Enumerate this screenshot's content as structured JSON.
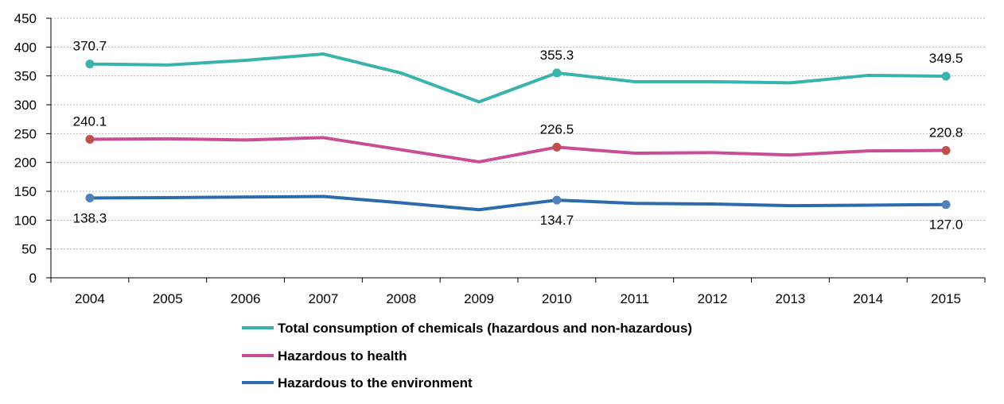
{
  "chart_data": {
    "type": "line",
    "title": "",
    "xlabel": "",
    "ylabel": "",
    "x": [
      "2004",
      "2005",
      "2006",
      "2007",
      "2008",
      "2009",
      "2010",
      "2011",
      "2012",
      "2013",
      "2014",
      "2015"
    ],
    "ylim": [
      0,
      450
    ],
    "yticks": [
      "0",
      "50",
      "100",
      "150",
      "200",
      "250",
      "300",
      "350",
      "400",
      "450"
    ],
    "grid": true,
    "legend_position": "bottom",
    "series": [
      {
        "name": "Total consumption of chemicals (hazardous and non-hazardous)",
        "color": "#39b3ac",
        "marker_color": "#39b3ac",
        "values": [
          370.7,
          369,
          377,
          388,
          355,
          305,
          355.3,
          340,
          340,
          338,
          351,
          349.5
        ],
        "labels": [
          {
            "index": 0,
            "text": "370.7",
            "position": "above"
          },
          {
            "index": 6,
            "text": "355.3",
            "position": "above"
          },
          {
            "index": 11,
            "text": "349.5",
            "position": "above"
          }
        ]
      },
      {
        "name": "Hazardous to health",
        "color": "#c94d96",
        "marker_color": "#c0504d",
        "values": [
          240.1,
          241,
          239,
          243,
          222,
          201,
          226.5,
          216,
          217,
          213,
          220,
          220.8
        ],
        "labels": [
          {
            "index": 0,
            "text": "240.1",
            "position": "above"
          },
          {
            "index": 6,
            "text": "226.5",
            "position": "above"
          },
          {
            "index": 11,
            "text": "220.8",
            "position": "above"
          }
        ]
      },
      {
        "name": "Hazardous to the environment",
        "color": "#2c6bb0",
        "marker_color": "#4f81bd",
        "values": [
          138.3,
          139,
          140,
          141,
          130,
          118,
          134.7,
          129,
          128,
          125,
          126,
          127.0
        ],
        "labels": [
          {
            "index": 0,
            "text": "138.3",
            "position": "below"
          },
          {
            "index": 6,
            "text": "134.7",
            "position": "below"
          },
          {
            "index": 11,
            "text": "127.0",
            "position": "below"
          }
        ]
      }
    ]
  }
}
